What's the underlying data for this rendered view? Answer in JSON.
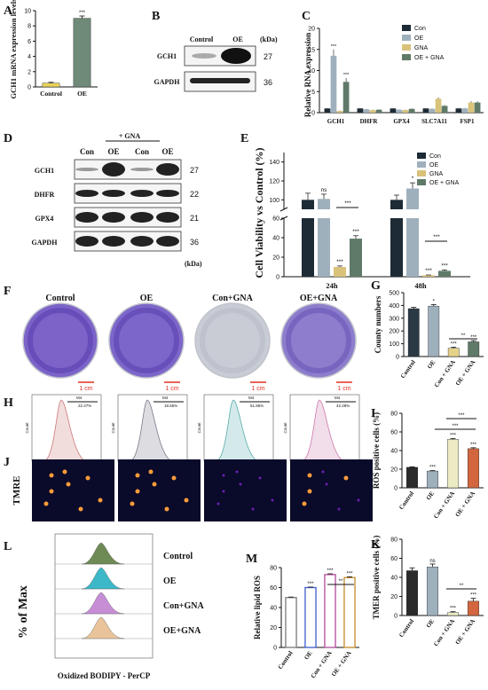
{
  "panels": {
    "A": {
      "letter": "A",
      "ylabel": "GCH1 mRNA expression levels",
      "categories": [
        "Control",
        "OE"
      ],
      "values": [
        0.5,
        9.0
      ],
      "errors": [
        0.1,
        0.3
      ],
      "ylim": [
        0,
        10
      ],
      "yticks": [
        "0",
        "2",
        "4",
        "6",
        "8",
        "10"
      ],
      "sig": [
        "",
        "***"
      ],
      "colors": [
        "#e8d35a",
        "#6f8a78"
      ]
    },
    "B": {
      "letter": "B",
      "cond": [
        "Control",
        "OE"
      ],
      "unit": "(kDa)",
      "rows": [
        {
          "name": "GCH1",
          "kda": "27"
        },
        {
          "name": "GAPDH",
          "kda": "36"
        }
      ]
    },
    "C": {
      "letter": "C",
      "ylabel": "Relative RNA expression",
      "categories": [
        "GCH1",
        "DHFR",
        "GPX4",
        "SLC7A11",
        "FSP1"
      ],
      "series": [
        {
          "name": "Con",
          "values": [
            1,
            1,
            1,
            1,
            1
          ],
          "errors": [
            0.1,
            0.1,
            0.1,
            0.1,
            0.1
          ],
          "color": "#1d2b36"
        },
        {
          "name": "OE",
          "values": [
            13.5,
            0.8,
            0.7,
            0.9,
            1.0
          ],
          "errors": [
            1.5,
            0.1,
            0.1,
            0.1,
            0.1
          ],
          "color": "#9fb0bd"
        },
        {
          "name": "GNA",
          "values": [
            0.4,
            0.6,
            0.6,
            3.3,
            2.4
          ],
          "errors": [
            0.1,
            0.1,
            0.1,
            0.3,
            0.3
          ],
          "color": "#d9c27a"
        },
        {
          "name": "OE + GNA",
          "values": [
            7.3,
            0.7,
            0.9,
            1.6,
            2.4
          ],
          "errors": [
            0.9,
            0.1,
            0.1,
            0.2,
            0.3
          ],
          "color": "#5f7a68"
        }
      ],
      "sig": [
        [
          "",
          "***",
          "",
          "***"
        ],
        [
          "",
          "",
          "",
          ""
        ],
        [
          "",
          "",
          "",
          ""
        ],
        [
          "",
          "",
          "",
          ""
        ],
        [
          "",
          "",
          "",
          ""
        ]
      ],
      "ylim": [
        0,
        20
      ],
      "yticks": [
        "0",
        "5",
        "10",
        "15",
        "20"
      ]
    },
    "D": {
      "letter": "D",
      "gna_label": "+ GNA",
      "cond": [
        "Con",
        "OE",
        "Con",
        "OE"
      ],
      "unit": "(kDa)",
      "rows": [
        {
          "name": "GCH1",
          "kda": "27"
        },
        {
          "name": "DHFR",
          "kda": "22"
        },
        {
          "name": "GPX4",
          "kda": "21"
        },
        {
          "name": "GAPDH",
          "kda": "36"
        }
      ]
    },
    "E": {
      "letter": "E",
      "ylabel": "Cell Viability vs Control (%)",
      "categories": [
        "24h",
        "48h"
      ],
      "series": [
        {
          "name": "Con",
          "values": [
            100,
            100
          ],
          "errors": [
            7,
            5
          ],
          "color": "#1d2b36"
        },
        {
          "name": "OE",
          "values": [
            101,
            112
          ],
          "errors": [
            5,
            6
          ],
          "color": "#9fb0bd"
        },
        {
          "name": "GNA",
          "values": [
            10,
            1.5
          ],
          "errors": [
            1,
            0.3
          ],
          "color": "#d9c27a"
        },
        {
          "name": "OE + GNA",
          "values": [
            39,
            6
          ],
          "errors": [
            3,
            1
          ],
          "color": "#5f7a68"
        }
      ],
      "sig": [
        [
          "",
          "ns",
          "***",
          "***"
        ],
        [
          "",
          "*",
          "***",
          "***"
        ]
      ],
      "brackets": [
        "***",
        "***"
      ],
      "yticks_upper": [
        "100",
        "120",
        "140"
      ],
      "yticks_lower": [
        "0",
        "20",
        "40",
        "60"
      ]
    },
    "F": {
      "letter": "F",
      "titles": [
        "Control",
        "OE",
        "Con+GNA",
        "OE+GNA"
      ],
      "scale": "1 cm"
    },
    "G": {
      "letter": "G",
      "ylabel": "County numbers",
      "categories": [
        "Control",
        "OE",
        "Con + GNA",
        "OE + GNA"
      ],
      "values": [
        375,
        395,
        65,
        115
      ],
      "errors": [
        10,
        12,
        8,
        10
      ],
      "sig": [
        "",
        "*",
        "***",
        "***"
      ],
      "bracket": "**",
      "ylim": [
        0,
        500
      ],
      "yticks": [
        "0",
        "100",
        "200",
        "300",
        "400",
        "500"
      ],
      "colors": [
        "#2a3a44",
        "#9fb0bd",
        "#e5d28a",
        "#5f7a68"
      ]
    },
    "H": {
      "letter": "H",
      "xaxis": "PerCP-H",
      "yaxis": "Count",
      "gates": [
        "22.47%",
        "18.56%",
        "51.85%",
        "42.28%"
      ],
      "gate_name": "M4",
      "colors": [
        "#c77",
        "#778",
        "#5aa",
        "#c7a"
      ]
    },
    "I": {
      "letter": "I",
      "ylabel": "ROS positive cells (%)",
      "categories": [
        "Control",
        "OE",
        "Con + GNA",
        "OE + GNA"
      ],
      "values": [
        22,
        18,
        52,
        42
      ],
      "errors": [
        0.5,
        0.5,
        1,
        1
      ],
      "sig": [
        "",
        "***",
        "***",
        "***"
      ],
      "brackets": [
        "***",
        "***"
      ],
      "ylim": [
        0,
        80
      ],
      "yticks": [
        "0",
        "20",
        "40",
        "60",
        "80"
      ],
      "colors": [
        "#2b2b2b",
        "#9fb0bd",
        "#ecebc4",
        "#d2663f"
      ]
    },
    "J": {
      "letter": "J",
      "row_label": "TMRE"
    },
    "K": {
      "letter": "K",
      "ylabel": "TMER positive cells (%)",
      "categories": [
        "Control",
        "OE",
        "Con + GNA",
        "OE + GNA"
      ],
      "values": [
        47,
        51,
        3,
        15
      ],
      "errors": [
        3,
        3,
        1,
        3
      ],
      "sig": [
        "",
        "ns",
        "***",
        "***"
      ],
      "bracket": "**",
      "ylim": [
        0,
        80
      ],
      "yticks": [
        "0",
        "20",
        "40",
        "60",
        "80"
      ],
      "colors": [
        "#2b2b2b",
        "#9fb0bd",
        "#ecebc4",
        "#d2663f"
      ]
    },
    "L": {
      "letter": "L",
      "ylabel": "% of Max",
      "xlabel": "Oxidized BODIPY - PerCP",
      "labels": [
        "Control",
        "OE",
        "Con+GNA",
        "OE+GNA"
      ],
      "colors": [
        "#6e8a55",
        "#3cb8c8",
        "#c78ed6",
        "#e9c39a"
      ]
    },
    "M": {
      "letter": "M",
      "ylabel": "Relative lipid ROS",
      "categories": [
        "Control",
        "OE",
        "Con + GNA",
        "OE + GNA"
      ],
      "values": [
        50,
        60,
        73,
        70
      ],
      "errors": [
        0.5,
        0.5,
        0.8,
        0.8
      ],
      "sig": [
        "",
        "***",
        "***",
        "***"
      ],
      "bracket": "**",
      "ylim": [
        0,
        80
      ],
      "yticks": [
        "0",
        "20",
        "40",
        "60",
        "80"
      ],
      "colors": [
        "#7a7a7a",
        "#3b5ccc",
        "#b04a9a",
        "#c48a2a"
      ]
    }
  },
  "chart_data": [
    {
      "type": "bar",
      "ylabel": "GCH1 mRNA expression levels",
      "categories": [
        "Control",
        "OE"
      ],
      "values": [
        0.5,
        9.0
      ],
      "ylim": [
        0,
        10
      ]
    },
    {
      "type": "bar",
      "ylabel": "Relative RNA expression",
      "categories": [
        "GCH1",
        "DHFR",
        "GPX4",
        "SLC7A11",
        "FSP1"
      ],
      "series": [
        {
          "name": "Con",
          "values": [
            1,
            1,
            1,
            1,
            1
          ]
        },
        {
          "name": "OE",
          "values": [
            13.5,
            0.8,
            0.7,
            0.9,
            1.0
          ]
        },
        {
          "name": "GNA",
          "values": [
            0.4,
            0.6,
            0.6,
            3.3,
            2.4
          ]
        },
        {
          "name": "OE + GNA",
          "values": [
            7.3,
            0.7,
            0.9,
            1.6,
            2.4
          ]
        }
      ],
      "ylim": [
        0,
        20
      ]
    },
    {
      "type": "bar",
      "ylabel": "Cell Viability vs Control (%)",
      "categories": [
        "24h",
        "48h"
      ],
      "series": [
        {
          "name": "Con",
          "values": [
            100,
            100
          ]
        },
        {
          "name": "OE",
          "values": [
            101,
            112
          ]
        },
        {
          "name": "GNA",
          "values": [
            10,
            1.5
          ]
        },
        {
          "name": "OE + GNA",
          "values": [
            39,
            6
          ]
        }
      ]
    },
    {
      "type": "bar",
      "ylabel": "County numbers",
      "categories": [
        "Control",
        "OE",
        "Con + GNA",
        "OE + GNA"
      ],
      "values": [
        375,
        395,
        65,
        115
      ],
      "ylim": [
        0,
        500
      ]
    },
    {
      "type": "bar",
      "ylabel": "ROS positive cells (%)",
      "categories": [
        "Control",
        "OE",
        "Con + GNA",
        "OE + GNA"
      ],
      "values": [
        22,
        18,
        52,
        42
      ],
      "ylim": [
        0,
        80
      ]
    },
    {
      "type": "bar",
      "ylabel": "TMER positive cells (%)",
      "categories": [
        "Control",
        "OE",
        "Con + GNA",
        "OE + GNA"
      ],
      "values": [
        47,
        51,
        3,
        15
      ],
      "ylim": [
        0,
        80
      ]
    },
    {
      "type": "bar",
      "ylabel": "Relative lipid ROS",
      "categories": [
        "Control",
        "OE",
        "Con + GNA",
        "OE + GNA"
      ],
      "values": [
        50,
        60,
        73,
        70
      ],
      "ylim": [
        0,
        80
      ]
    }
  ]
}
